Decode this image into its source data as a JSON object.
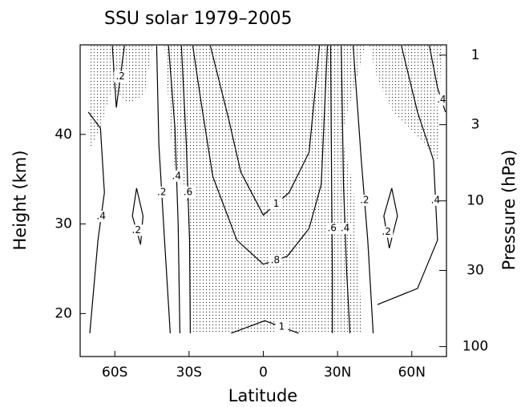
{
  "chart_data": {
    "type": "contour",
    "title": "SSU solar 1979–2005",
    "xlabel": "Latitude",
    "ylabel": "Height (km)",
    "y2label": "Pressure (hPa)",
    "xlim": [
      -74,
      74
    ],
    "ylim": [
      15.2,
      50
    ],
    "y2lim": [
      117,
      0.85
    ],
    "y2log": true,
    "xticks": [
      {
        "value": -60,
        "label": "60S"
      },
      {
        "value": -30,
        "label": "30S"
      },
      0,
      {
        "value": 30,
        "label": "30N"
      },
      {
        "value": 60,
        "label": "60N"
      }
    ],
    "yticks": [
      20,
      30,
      40
    ],
    "y2ticks": [
      1,
      3,
      10,
      30,
      100
    ],
    "color": "#000000",
    "contours": [
      {
        "label": "1",
        "x": [
          -21.4,
          -13.9,
          -9.1,
          0,
          10.4,
          18.5,
          22.7
        ],
        "y": [
          49.9,
          41.6,
          35.8,
          31.0,
          33.5,
          38.0,
          49.9
        ]
      },
      {
        "label": "1",
        "x": [
          -13.0,
          0.6,
          14.3
        ],
        "y": [
          17.8,
          19.2,
          17.8
        ]
      },
      {
        "label": ".8",
        "x": [
          -28.5,
          -25.3,
          -20.4,
          -10.7,
          0,
          9.7,
          18.5,
          23.4,
          25.9
        ],
        "y": [
          49.9,
          43.9,
          35.3,
          28.2,
          25.5,
          26.4,
          29.5,
          34.4,
          49.9
        ]
      },
      {
        "label": ".6",
        "x": [
          -33.1,
          -31.1,
          -29.8,
          -29.5
        ],
        "y": [
          49.9,
          38.9,
          28.2,
          17.8
        ]
      },
      {
        "label": ".6",
        "x": [
          27.2,
          27.6,
          27.9,
          27.9
        ],
        "y": [
          49.9,
          34.4,
          24.6,
          17.8
        ]
      },
      {
        "label": ".4",
        "x": [
          -38.3,
          -35.7,
          -34.4,
          -33.7
        ],
        "y": [
          49.9,
          40.7,
          30.0,
          17.8
        ]
      },
      {
        "label": ".4",
        "x": [
          31.5,
          32.4,
          33.7,
          35.0
        ],
        "y": [
          49.9,
          34.4,
          24.6,
          17.8
        ]
      },
      {
        "label": ".2",
        "x": [
          -43.1,
          -42.2,
          -39.9,
          -37.6
        ],
        "y": [
          49.9,
          38.9,
          28.2,
          17.8
        ]
      },
      {
        "label": ".2",
        "x": [
          36.3,
          39.6,
          42.2,
          44.4
        ],
        "y": [
          49.9,
          37.1,
          28.2,
          17.8
        ]
      },
      {
        "label": ".4",
        "x": [
          -70.7,
          -65.8,
          -64.2,
          -66.8,
          -70.1
        ],
        "y": [
          42.5,
          40.7,
          33.5,
          28.2,
          17.8
        ]
      },
      {
        "label": ".2",
        "x": [
          -51.2,
          -48.6,
          -49.6,
          -52.9,
          -51.2
        ],
        "y": [
          34.0,
          30.9,
          27.7,
          30.9,
          34.0
        ]
      },
      {
        "label": ".2",
        "x": [
          -61.0,
          -59.4,
          -56.1
        ],
        "y": [
          49.9,
          43.0,
          49.9
        ]
      },
      {
        "label": ".2",
        "x": [
          51.9,
          54.2,
          50.9,
          48.7,
          51.9
        ],
        "y": [
          34.0,
          30.9,
          27.3,
          30.9,
          34.0
        ]
      },
      {
        "label": ".4",
        "x": [
          55.8,
          62.3,
          68.8,
          70.4,
          62.3,
          46.1
        ],
        "y": [
          49.9,
          42.5,
          37.1,
          28.2,
          22.8,
          21.0
        ]
      },
      {
        "label": ".4",
        "x": [
          67.1,
          70.4,
          73.6
        ],
        "y": [
          49.9,
          45.2,
          42.5
        ]
      }
    ],
    "shaded_regions": [
      {
        "x": [
          -39.9,
          -36.6,
          -29.8,
          -29.8,
          40.2,
          36.3,
          31.5,
          41.2
        ],
        "y": [
          49.9,
          37.1,
          31.7,
          17.8,
          17.8,
          34.4,
          39.8,
          49.9
        ]
      },
      {
        "x": [
          -70.7,
          -70.7,
          -65.8,
          -61.0,
          -54.5,
          -48.0,
          -44.8
        ],
        "y": [
          49.9,
          38.0,
          40.7,
          45.2,
          43.4,
          44.3,
          49.9
        ]
      },
      {
        "x": [
          42.8,
          46.1,
          52.5,
          62.3,
          70.4,
          72.0
        ],
        "y": [
          49.9,
          46.1,
          42.5,
          39.8,
          37.1,
          49.9
        ]
      }
    ]
  }
}
